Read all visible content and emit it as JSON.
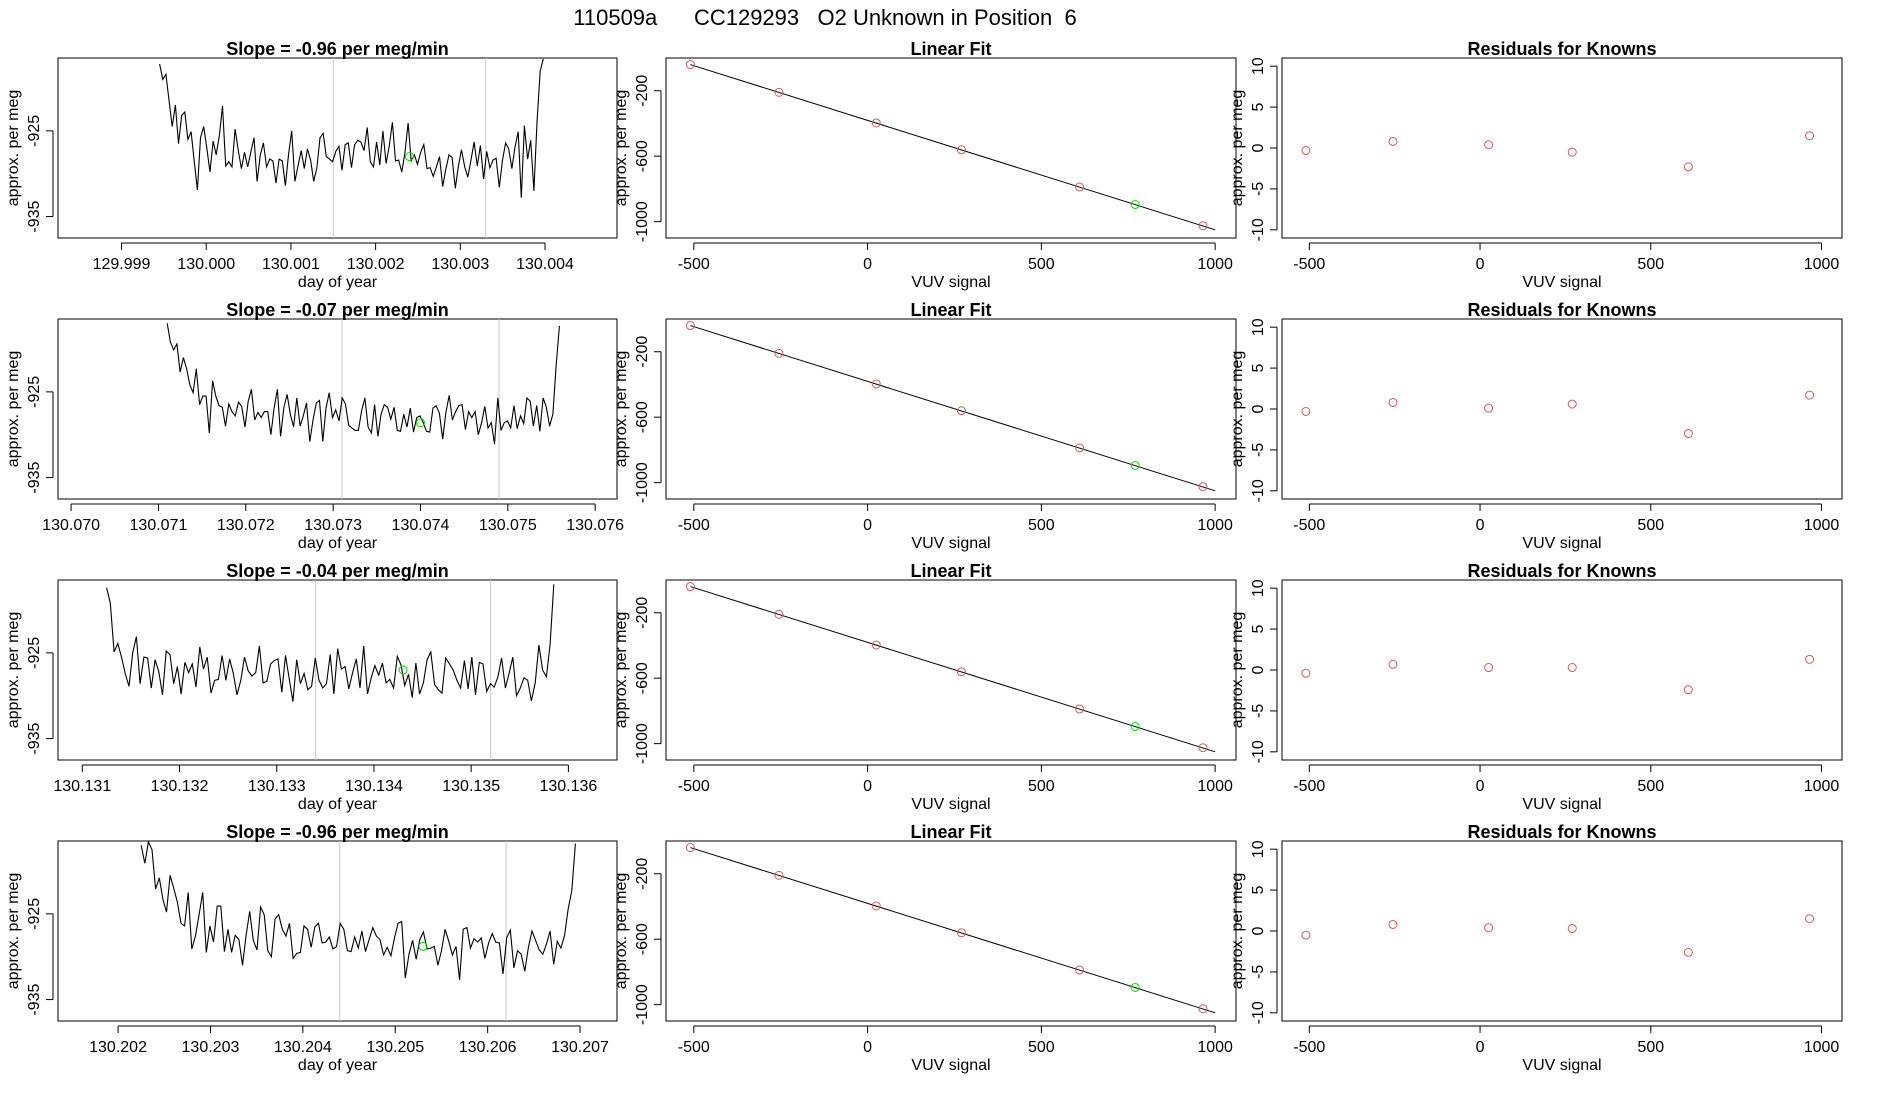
{
  "figure_title": "110509a      CC129293   O2 Unknown in Position  6",
  "colors": {
    "ink": "#000000",
    "marker_red": "#cd5c5c",
    "marker_green": "#00dd00",
    "guide_line": "#c8c8c8"
  },
  "chart_data": [
    {
      "type": "line",
      "row": 1,
      "panel": "timeseries",
      "title": "Slope =  -0.96  per meg/min",
      "xlabel": "day of year",
      "ylabel": "approx. per meg",
      "xlim": [
        129.99825,
        130.00485
      ],
      "ylim": [
        -937.5,
        -916.5
      ],
      "xticks": [
        129.999,
        130.0,
        130.001,
        130.002,
        130.003,
        130.004
      ],
      "xtick_labels": [
        "129.999",
        "130.000",
        "130.001",
        "130.002",
        "130.003",
        "130.004"
      ],
      "yticks": [
        -925,
        -935
      ],
      "ytick_labels": [
        "-925",
        "-935"
      ],
      "trace_x_range": [
        129.99945,
        130.00398
      ],
      "trace_y": [
        -917.2,
        -919.0,
        -918.4,
        -921.5,
        -924.5,
        -922.0,
        -926.5,
        -923.2,
        -922.8,
        -926.0,
        -925.1,
        -928.5,
        -931.9,
        -925.8,
        -924.5,
        -927.0,
        -929.8,
        -926.2,
        -927.8,
        -925.5,
        -922.1,
        -929.1,
        -928.6,
        -929.2,
        -924.8,
        -927.3,
        -929.4,
        -927.5,
        -929.2,
        -927.5,
        -925.8,
        -930.9,
        -927.8,
        -926.4,
        -929.2,
        -928.3,
        -928.5,
        -931.1,
        -928.3,
        -928.5,
        -931.4,
        -927.7,
        -925.0,
        -930.9,
        -929.1,
        -927.3,
        -929.4,
        -927.1,
        -928.4,
        -930.9,
        -929.3,
        -925.8,
        -925.3,
        -928.0,
        -928.3,
        -928.6,
        -927.4,
        -926.8,
        -929.6,
        -926.6,
        -926.4,
        -929.3,
        -926.6,
        -926.1,
        -926.3,
        -927.3,
        -924.6,
        -928.6,
        -929.2,
        -926.3,
        -929.0,
        -925.0,
        -928.8,
        -926.8,
        -924.0,
        -928.5,
        -928.4,
        -929.8,
        -927.6,
        -924.1,
        -928.5,
        -927.8,
        -928.9,
        -927.5,
        -926.6,
        -929.4,
        -929.3,
        -930.3,
        -929.2,
        -928.0,
        -931.5,
        -929.5,
        -927.8,
        -928.1,
        -931.7,
        -929.1,
        -927.2,
        -929.2,
        -930.4,
        -928.4,
        -926.3,
        -929.1,
        -926.7,
        -930.6,
        -927.4,
        -929.3,
        -928.4,
        -928.2,
        -931.6,
        -928.5,
        -926.4,
        -927.1,
        -929.4,
        -926.9,
        -925.1,
        -932.8,
        -924.4,
        -928.3,
        -926.1,
        -932.0,
        -924.0,
        -918.0,
        -916.6
      ],
      "guide_lines_x": [
        130.0015,
        130.0033
      ],
      "highlight_point": {
        "x": 130.0024,
        "y": -928.0
      }
    },
    {
      "type": "scatter",
      "row": 1,
      "panel": "linear_fit",
      "title": "Linear Fit",
      "xlabel": "VUV signal",
      "ylabel": "approx. per meg",
      "xlim": [
        -580,
        1060
      ],
      "ylim": [
        -1100,
        0
      ],
      "xticks": [
        -500,
        0,
        500,
        1000
      ],
      "xtick_labels": [
        "-500",
        "0",
        "500",
        "1000"
      ],
      "yticks": [
        -200,
        -600,
        -1000
      ],
      "ytick_labels": [
        "-200",
        "-600",
        "-1000"
      ],
      "fit_line": {
        "x": [
          -510,
          1000
        ],
        "y": [
          -40,
          -1050
        ]
      },
      "points_x": [
        -510,
        -255,
        25,
        270,
        610,
        965
      ],
      "points_y": [
        -40,
        -210,
        -397,
        -561,
        -788,
        -1025
      ],
      "highlight_point": {
        "x": 770,
        "y": -895
      }
    },
    {
      "type": "scatter",
      "row": 1,
      "panel": "residuals",
      "title": "Residuals for Knowns",
      "xlabel": "VUV signal",
      "ylabel": "approx. per meg",
      "xlim": [
        -580,
        1060
      ],
      "ylim": [
        -11,
        11
      ],
      "xticks": [
        -500,
        0,
        500,
        1000
      ],
      "xtick_labels": [
        "-500",
        "0",
        "500",
        "1000"
      ],
      "yticks": [
        10,
        5,
        0,
        -5,
        -10
      ],
      "ytick_labels": [
        "10",
        "5",
        "0",
        "-5",
        "-10"
      ],
      "points_x": [
        -510,
        -255,
        25,
        270,
        610,
        965
      ],
      "points_y": [
        -0.3,
        0.8,
        0.4,
        -0.5,
        -2.3,
        1.5
      ]
    },
    {
      "type": "line",
      "row": 2,
      "panel": "timeseries",
      "title": "Slope =  -0.07  per meg/min",
      "xlabel": "day of year",
      "ylabel": "approx. per meg",
      "xlim": [
        130.06985,
        130.07625
      ],
      "ylim": [
        -937.5,
        -916.5
      ],
      "xticks": [
        130.07,
        130.071,
        130.072,
        130.073,
        130.074,
        130.075,
        130.076
      ],
      "xtick_labels": [
        "130.070",
        "130.071",
        "130.072",
        "130.073",
        "130.074",
        "130.075",
        "130.076"
      ],
      "yticks": [
        -925,
        -935
      ],
      "ytick_labels": [
        "-925",
        "-935"
      ],
      "trace_x_range": [
        130.0711,
        130.07559
      ],
      "trace_y": [
        -917.0,
        -919.2,
        -920.1,
        -919.4,
        -922.7,
        -921.0,
        -922.3,
        -924.2,
        -925.1,
        -922.3,
        -926.5,
        -925.5,
        -925.5,
        -929.8,
        -923.7,
        -925.5,
        -926.6,
        -926.8,
        -929.0,
        -926.4,
        -927.3,
        -927.8,
        -926.2,
        -926.7,
        -929.1,
        -926.1,
        -924.7,
        -928.3,
        -927.4,
        -928.0,
        -927.3,
        -927.3,
        -930.0,
        -926.9,
        -924.7,
        -930.2,
        -926.8,
        -925.3,
        -927.6,
        -929.1,
        -925.7,
        -929.0,
        -927.8,
        -926.3,
        -930.8,
        -928.3,
        -926.3,
        -926.0,
        -930.8,
        -926.9,
        -925.1,
        -928.0,
        -927.1,
        -928.4,
        -925.7,
        -926.4,
        -928.9,
        -929.2,
        -929.5,
        -929.5,
        -927.2,
        -925.7,
        -929.1,
        -929.8,
        -926.5,
        -930.2,
        -927.6,
        -926.5,
        -926.8,
        -928.2,
        -926.8,
        -929.5,
        -929.6,
        -927.6,
        -929.1,
        -926.9,
        -929.7,
        -928.0,
        -927.8,
        -928.6,
        -929.6,
        -929.7,
        -926.9,
        -926.6,
        -927.5,
        -930.5,
        -927.4,
        -925.4,
        -928.3,
        -927.3,
        -926.6,
        -926.5,
        -929.4,
        -927.3,
        -928.0,
        -927.3,
        -930.0,
        -928.6,
        -926.7,
        -929.2,
        -928.6,
        -931.1,
        -925.7,
        -929.5,
        -928.6,
        -928.4,
        -929.2,
        -926.6,
        -929.3,
        -927.8,
        -928.7,
        -925.7,
        -926.1,
        -929.0,
        -926.6,
        -929.6,
        -925.7,
        -926.8,
        -929.0,
        -927.6,
        -922.0,
        -917.3
      ],
      "guide_lines_x": [
        130.0731,
        130.0749
      ],
      "highlight_point": {
        "x": 130.074,
        "y": -928.6
      }
    },
    {
      "type": "scatter",
      "row": 2,
      "panel": "linear_fit",
      "title": "Linear Fit",
      "xlabel": "VUV signal",
      "ylabel": "approx. per meg",
      "xlim": [
        -580,
        1060
      ],
      "ylim": [
        -1100,
        0
      ],
      "xticks": [
        -500,
        0,
        500,
        1000
      ],
      "xtick_labels": [
        "-500",
        "0",
        "500",
        "1000"
      ],
      "yticks": [
        -200,
        -600,
        -1000
      ],
      "ytick_labels": [
        "-200",
        "-600",
        "-1000"
      ],
      "fit_line": {
        "x": [
          -510,
          1000
        ],
        "y": [
          -40,
          -1050
        ]
      },
      "points_x": [
        -510,
        -255,
        25,
        270,
        610,
        965
      ],
      "points_y": [
        -40,
        -210,
        -397,
        -561,
        -788,
        -1025
      ],
      "highlight_point": {
        "x": 770,
        "y": -895
      }
    },
    {
      "type": "scatter",
      "row": 2,
      "panel": "residuals",
      "title": "Residuals for Knowns",
      "xlabel": "VUV signal",
      "ylabel": "approx. per meg",
      "xlim": [
        -580,
        1060
      ],
      "ylim": [
        -11,
        11
      ],
      "xticks": [
        -500,
        0,
        500,
        1000
      ],
      "xtick_labels": [
        "-500",
        "0",
        "500",
        "1000"
      ],
      "yticks": [
        10,
        5,
        0,
        -5,
        -10
      ],
      "ytick_labels": [
        "10",
        "5",
        "0",
        "-5",
        "-10"
      ],
      "points_x": [
        -510,
        -255,
        25,
        270,
        610,
        965
      ],
      "points_y": [
        -0.3,
        0.8,
        0.1,
        0.6,
        -3.0,
        1.7
      ]
    },
    {
      "type": "line",
      "row": 3,
      "panel": "timeseries",
      "title": "Slope =  -0.04  per meg/min",
      "xlabel": "day of year",
      "ylabel": "approx. per meg",
      "xlim": [
        130.13075,
        130.1365
      ],
      "ylim": [
        -937.5,
        -916.5
      ],
      "xticks": [
        130.131,
        130.132,
        130.133,
        130.134,
        130.135,
        130.136
      ],
      "xtick_labels": [
        "130.131",
        "130.132",
        "130.133",
        "130.134",
        "130.135",
        "130.136"
      ],
      "yticks": [
        -925,
        -935
      ],
      "ytick_labels": [
        "-925",
        "-935"
      ],
      "trace_x_range": [
        130.13125,
        130.13585
      ],
      "trace_y": [
        -917.4,
        -919.2,
        -924.9,
        -923.9,
        -925.5,
        -927.4,
        -928.9,
        -925.0,
        -923.1,
        -928.6,
        -925.5,
        -925.6,
        -929.1,
        -925.8,
        -927.2,
        -929.9,
        -924.8,
        -925.2,
        -928.6,
        -926.6,
        -929.8,
        -926.1,
        -927.3,
        -926.3,
        -929.0,
        -924.3,
        -926.9,
        -925.5,
        -929.7,
        -928.2,
        -928.1,
        -925.3,
        -928.2,
        -925.7,
        -927.4,
        -929.9,
        -928.2,
        -925.5,
        -927.1,
        -927.7,
        -927.3,
        -924.2,
        -928.5,
        -928.3,
        -926.3,
        -925.9,
        -925.7,
        -929.6,
        -925.3,
        -928.0,
        -930.7,
        -925.8,
        -928.6,
        -927.4,
        -929.3,
        -928.9,
        -925.6,
        -928.2,
        -929.1,
        -928.6,
        -925.2,
        -929.8,
        -924.5,
        -926.9,
        -926.6,
        -929.2,
        -927.3,
        -925.7,
        -929.1,
        -924.2,
        -929.8,
        -927.9,
        -926.5,
        -927.6,
        -926.2,
        -928.5,
        -928.1,
        -929.1,
        -925.4,
        -926.4,
        -928.8,
        -927.5,
        -930.2,
        -926.2,
        -929.8,
        -928.5,
        -925.8,
        -924.9,
        -928.7,
        -929.3,
        -929.7,
        -925.6,
        -926.3,
        -927.0,
        -928.2,
        -929.1,
        -925.9,
        -929.2,
        -925.5,
        -929.9,
        -926.1,
        -926.3,
        -929.5,
        -928.6,
        -929.0,
        -927.8,
        -925.6,
        -929.1,
        -927.4,
        -925.5,
        -930.0,
        -929.1,
        -927.9,
        -928.2,
        -930.6,
        -928.5,
        -924.1,
        -927.0,
        -927.8,
        -924.0,
        -917.0
      ],
      "guide_lines_x": [
        130.1334,
        130.1352
      ],
      "highlight_point": {
        "x": 130.1343,
        "y": -927.0
      }
    },
    {
      "type": "scatter",
      "row": 3,
      "panel": "linear_fit",
      "title": "Linear Fit",
      "xlabel": "VUV signal",
      "ylabel": "approx. per meg",
      "xlim": [
        -580,
        1060
      ],
      "ylim": [
        -1100,
        0
      ],
      "xticks": [
        -500,
        0,
        500,
        1000
      ],
      "xtick_labels": [
        "-500",
        "0",
        "500",
        "1000"
      ],
      "yticks": [
        -200,
        -600,
        -1000
      ],
      "ytick_labels": [
        "-200",
        "-600",
        "-1000"
      ],
      "fit_line": {
        "x": [
          -510,
          1000
        ],
        "y": [
          -40,
          -1050
        ]
      },
      "points_x": [
        -510,
        -255,
        25,
        270,
        610,
        965
      ],
      "points_y": [
        -40,
        -210,
        -397,
        -561,
        -788,
        -1025
      ],
      "highlight_point": {
        "x": 770,
        "y": -895
      }
    },
    {
      "type": "scatter",
      "row": 3,
      "panel": "residuals",
      "title": "Residuals for Knowns",
      "xlabel": "VUV signal",
      "ylabel": "approx. per meg",
      "xlim": [
        -580,
        1060
      ],
      "ylim": [
        -11,
        11
      ],
      "xticks": [
        -500,
        0,
        500,
        1000
      ],
      "xtick_labels": [
        "-500",
        "0",
        "500",
        "1000"
      ],
      "yticks": [
        10,
        5,
        0,
        -5,
        -10
      ],
      "ytick_labels": [
        "10",
        "5",
        "0",
        "-5",
        "-10"
      ],
      "points_x": [
        -510,
        -255,
        25,
        270,
        610,
        965
      ],
      "points_y": [
        -0.4,
        0.7,
        0.3,
        0.3,
        -2.4,
        1.3
      ]
    },
    {
      "type": "line",
      "row": 4,
      "panel": "timeseries",
      "title": "Slope =  -0.96  per meg/min",
      "xlabel": "day of year",
      "ylabel": "approx. per meg",
      "xlim": [
        130.20135,
        130.2074
      ],
      "ylim": [
        -937.5,
        -916.5
      ],
      "xticks": [
        130.202,
        130.203,
        130.204,
        130.205,
        130.206,
        130.207
      ],
      "xtick_labels": [
        "130.202",
        "130.203",
        "130.204",
        "130.205",
        "130.206",
        "130.207"
      ],
      "yticks": [
        -925,
        -935
      ],
      "ytick_labels": [
        "-925",
        "-935"
      ],
      "trace_x_range": [
        130.20225,
        130.20695
      ],
      "trace_y": [
        -917.0,
        -919.1,
        -916.6,
        -917.5,
        -922.1,
        -920.8,
        -923.3,
        -924.8,
        -920.5,
        -922.0,
        -923.6,
        -926.1,
        -926.4,
        -922.5,
        -929.1,
        -927.6,
        -925.1,
        -922.5,
        -929.5,
        -926.4,
        -928.3,
        -924.1,
        -924.1,
        -929.4,
        -926.8,
        -929.5,
        -927.5,
        -928.0,
        -931.0,
        -927.5,
        -924.7,
        -928.1,
        -929.2,
        -924.2,
        -925.1,
        -929.3,
        -930.0,
        -925.6,
        -925.1,
        -926.8,
        -927.6,
        -926.1,
        -930.2,
        -929.6,
        -929.5,
        -926.4,
        -926.8,
        -928.9,
        -926.5,
        -926.1,
        -928.4,
        -928.3,
        -927.7,
        -929.1,
        -928.8,
        -926.1,
        -926.8,
        -929.3,
        -929.4,
        -927.7,
        -929.0,
        -927.0,
        -929.4,
        -928.0,
        -926.6,
        -927.6,
        -928.0,
        -929.8,
        -928.9,
        -929.9,
        -927.8,
        -926.1,
        -925.9,
        -932.5,
        -929.7,
        -928.1,
        -930.3,
        -928.0,
        -927.1,
        -929.1,
        -929.0,
        -928.8,
        -931.0,
        -929.3,
        -926.8,
        -928.2,
        -929.8,
        -928.8,
        -932.7,
        -926.8,
        -926.6,
        -929.0,
        -927.9,
        -928.3,
        -927.8,
        -930.2,
        -928.4,
        -927.3,
        -928.3,
        -928.4,
        -932.0,
        -927.8,
        -926.9,
        -931.3,
        -929.3,
        -929.7,
        -931.7,
        -928.9,
        -927.0,
        -928.1,
        -929.2,
        -929.7,
        -928.5,
        -927.0,
        -930.9,
        -928.2,
        -929.0,
        -927.5,
        -924.4,
        -922.3,
        -916.8
      ],
      "guide_lines_x": [
        130.2044,
        130.2062
      ],
      "highlight_point": {
        "x": 130.2053,
        "y": -928.8
      }
    },
    {
      "type": "scatter",
      "row": 4,
      "panel": "linear_fit",
      "title": "Linear Fit",
      "xlabel": "VUV signal",
      "ylabel": "approx. per meg",
      "xlim": [
        -580,
        1060
      ],
      "ylim": [
        -1100,
        0
      ],
      "xticks": [
        -500,
        0,
        500,
        1000
      ],
      "xtick_labels": [
        "-500",
        "0",
        "500",
        "1000"
      ],
      "yticks": [
        -200,
        -600,
        -1000
      ],
      "ytick_labels": [
        "-200",
        "-600",
        "-1000"
      ],
      "fit_line": {
        "x": [
          -510,
          1000
        ],
        "y": [
          -40,
          -1050
        ]
      },
      "points_x": [
        -510,
        -255,
        25,
        270,
        610,
        965
      ],
      "points_y": [
        -40,
        -210,
        -397,
        -561,
        -788,
        -1025
      ],
      "highlight_point": {
        "x": 770,
        "y": -895
      }
    },
    {
      "type": "scatter",
      "row": 4,
      "panel": "residuals",
      "title": "Residuals for Knowns",
      "xlabel": "VUV signal",
      "ylabel": "approx. per meg",
      "xlim": [
        -580,
        1060
      ],
      "ylim": [
        -11,
        11
      ],
      "xticks": [
        -500,
        0,
        500,
        1000
      ],
      "xtick_labels": [
        "-500",
        "0",
        "500",
        "1000"
      ],
      "yticks": [
        10,
        5,
        0,
        -5,
        -10
      ],
      "ytick_labels": [
        "10",
        "5",
        "0",
        "-5",
        "-10"
      ],
      "points_x": [
        -510,
        -255,
        25,
        270,
        610,
        965
      ],
      "points_y": [
        -0.5,
        0.8,
        0.4,
        0.3,
        -2.6,
        1.5
      ]
    }
  ]
}
